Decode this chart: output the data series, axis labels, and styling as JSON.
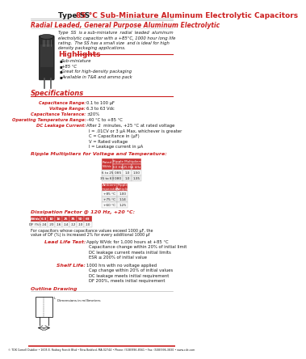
{
  "title_type": "Type SS",
  "title_main": "85 °C Sub-Miniature Aluminum Electrolytic Capacitors",
  "subtitle": "Radial Leaded, General Purpose Aluminum Electrolytic",
  "description_lines": [
    "Type  SS  is a sub-miniature  radial  leaded  aluminum",
    "electrolytic capacitor with a +85°C, 1000 hour long life",
    "rating.  The SS has a small size  and is ideal for high",
    "density packaging applications."
  ],
  "highlights_title": "Highlights",
  "highlights": [
    "Sub-miniature",
    "+85 °C",
    "Great for high-density packaging",
    "Available in T&R and ammo pack"
  ],
  "specs_title": "Specifications",
  "spec_labels": [
    "Capacitance Range:",
    "Voltage Range:",
    "Capacitance Tolerance:",
    "Operating Temperature Range:",
    "DC Leakage Current:"
  ],
  "spec_values": [
    "0.1 to 100 µF",
    "6.3 to 63 Vdc",
    "±20%",
    "–40 °C to +85 °C",
    "After 2  minutes, +25 °C at rated voltage"
  ],
  "dc_extra_lines": [
    "I = .01CV or 3 µA Max, whichever is greater",
    "C = Capacitance in (µF)",
    "V = Rated voltage",
    "I = Leakage current in µA"
  ],
  "ripple_title": "Ripple Multipliers for Voltage and Temperature:",
  "ripple_t1_col0_header": "Rated\nWVdc",
  "ripple_t1_span_header": "Ripple Multipliers",
  "ripple_t1_sub_headers": [
    "60 Hz",
    "125 Hz",
    "1 kHz"
  ],
  "ripple_t1_rows": [
    [
      "6 to 25",
      "0.85",
      "1.0",
      "1.50"
    ],
    [
      "35 to 63",
      "0.80",
      "1.0",
      "1.35"
    ]
  ],
  "ripple_t2_headers": [
    "Ambient\nTemperature",
    "Ripple\nMultiplier"
  ],
  "ripple_t2_rows": [
    [
      "+85 °C",
      "1.00"
    ],
    [
      "+75 °C",
      "1.14"
    ],
    [
      "+60 °C",
      "1.25"
    ]
  ],
  "diss_title": "Dissipation Factor @ 120 Hz, +20 °C:",
  "diss_headers": [
    "WVdc",
    "6.3",
    "10",
    "16",
    "25",
    "35",
    "50",
    "63"
  ],
  "diss_row": [
    "DF (%):",
    ".24",
    ".20",
    ".16",
    ".14",
    ".12",
    ".10",
    ".10"
  ],
  "diss_note1": "For capacitors whose capacitance values exceed 1000 µF, the",
  "diss_note2": "value of DF (%) is increased 2% for every additional 1000 µf",
  "lead_title": "Lead Life Test:",
  "lead_lines": [
    "Apply WVdc for 1,000 hours at +85 °C",
    "Capacitance change within 20% of initial limit",
    "DC leakage current meets initial limits",
    "ESR ≤ 200% of initial value"
  ],
  "shelf_title": "Shelf Life:",
  "shelf_lines": [
    "1000 hrs with no voltage applied",
    "Cap change within 20% of initial values",
    "DC leakage meets initial requirement",
    "DF 200%, meets initial requirement"
  ],
  "outline_title": "Outline Drawing",
  "footer": "© TDK Cornell Dubilier • 1605 E. Rodney French Blvd • New Bedford, MA 02744 • Phone: (508)996-8561 • Fax: (508)996-3830 • www.cde.com",
  "red": "#cc2020",
  "dark": "#1a1a1a",
  "white": "#ffffff",
  "tbl_hdr_bg": "#cc3333",
  "tbl_row_light": "#f8f8f8",
  "tbl_row_dark": "#ebebeb",
  "tbl_border": "#999999",
  "bg": "#ffffff"
}
